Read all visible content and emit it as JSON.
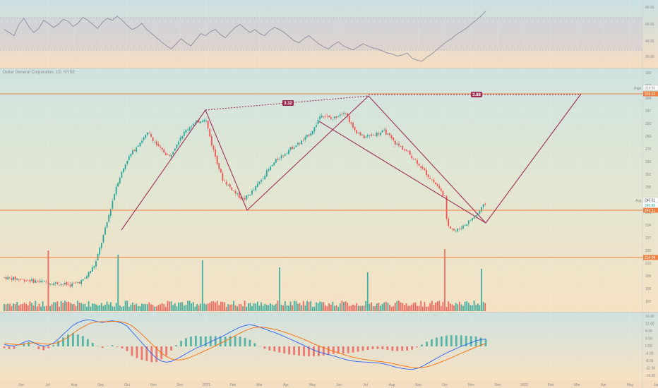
{
  "symbol_label": "Dollar General Corporation, 1D, NYSE",
  "chart_data": {
    "type": "candlestick",
    "price_axis": {
      "range": [
        191,
        323
      ],
      "ticks": [
        "320",
        "312",
        "304",
        "297",
        "290",
        "283",
        "276",
        "269",
        "262",
        "255",
        "248",
        "241",
        "234",
        "227",
        "220",
        "213",
        "206",
        "199",
        "192"
      ]
    },
    "rsi": {
      "range": [
        25,
        85
      ],
      "ticks": [
        "80.00",
        "60.00",
        "40.00",
        "30.00"
      ],
      "values": [
        61,
        58,
        55,
        66,
        72,
        64,
        58,
        62,
        70,
        67,
        63,
        66,
        71,
        69,
        64,
        67,
        73,
        70,
        66,
        62,
        68,
        72,
        70,
        74,
        70,
        65,
        61,
        63,
        67,
        61,
        57,
        53,
        49,
        45,
        42,
        47,
        52,
        48,
        45,
        51,
        57,
        55,
        59,
        61,
        56,
        53,
        58,
        63,
        66,
        62,
        58,
        61,
        57,
        55,
        60,
        63,
        61,
        58,
        54,
        50,
        48,
        52,
        55,
        51,
        47,
        44,
        42,
        46,
        49,
        45,
        43,
        41,
        44,
        47,
        45,
        43,
        42,
        40,
        38,
        37,
        35,
        36,
        38,
        33,
        31,
        30,
        34,
        37,
        41,
        45,
        49,
        52,
        56,
        59,
        62,
        66,
        70,
        74,
        79
      ]
    },
    "macd": {
      "ticks": [
        "16.00",
        "12.00",
        "8.00",
        "4.00",
        "0.00",
        "-4.00",
        "-8.00",
        "-12.00",
        "-16.00"
      ],
      "macd_line": [
        1.0,
        0.5,
        0.2,
        1.0,
        2.2,
        3.1,
        2.0,
        0.8,
        0.1,
        0.6,
        1.8,
        4,
        6.5,
        9,
        11.5,
        13,
        14,
        14.5,
        14.2,
        13.5,
        13,
        13.6,
        14,
        13.4,
        12.6,
        11,
        8,
        5,
        2,
        -1,
        -4,
        -6.5,
        -8,
        -8.6,
        -8.2,
        -7,
        -5.5,
        -4,
        -2.5,
        -1,
        0,
        1.2,
        2.5,
        3.8,
        5,
        6.3,
        7.8,
        9.2,
        10.5,
        11.4,
        11.8,
        11.4,
        10.5,
        9.5,
        8.5,
        7.6,
        6.5,
        5.4,
        4.2,
        3,
        1.8,
        0.5,
        -0.8,
        -2,
        -3,
        -3.8,
        -4.5,
        -5.2,
        -6,
        -6.8,
        -7.5,
        -8,
        -8.3,
        -8.5,
        -8.6,
        -8.8,
        -9,
        -9.4,
        -10,
        -10.8,
        -11.5,
        -12,
        -12.4,
        -12.6,
        -12,
        -11,
        -9.5,
        -8,
        -6.5,
        -5,
        -3.6,
        -2.4,
        -1.2,
        0,
        1.0,
        2.0,
        3.0,
        3.6,
        4.0
      ],
      "signal_line": [
        1.6,
        1.4,
        1.1,
        0.9,
        1.2,
        1.7,
        2.0,
        1.8,
        1.4,
        1.2,
        1.4,
        2.2,
        3.5,
        5,
        7,
        9,
        10.5,
        12,
        13,
        13.4,
        13.5,
        13.5,
        13.6,
        13.6,
        13.3,
        12.6,
        11.2,
        9,
        6.6,
        4,
        1.4,
        -1.2,
        -3.6,
        -5.5,
        -6.8,
        -7.4,
        -7.4,
        -6.8,
        -5.8,
        -4.6,
        -3.4,
        -2.2,
        -1,
        0.3,
        1.6,
        3,
        4.4,
        5.8,
        7.2,
        8.5,
        9.6,
        10.3,
        10.5,
        10.3,
        9.9,
        9.3,
        8.6,
        7.8,
        6.9,
        5.9,
        4.9,
        3.8,
        2.6,
        1.4,
        0.3,
        -0.7,
        -1.7,
        -2.6,
        -3.5,
        -4.4,
        -5.2,
        -5.9,
        -6.5,
        -7,
        -7.4,
        -7.8,
        -8.1,
        -8.4,
        -8.8,
        -9.3,
        -9.9,
        -10.5,
        -11,
        -11.5,
        -11.7,
        -11.6,
        -11.1,
        -10.4,
        -9.5,
        -8.4,
        -7.3,
        -6.2,
        -5,
        -3.8,
        -2.6,
        -1.5,
        -0.4,
        0.6,
        1.5
      ]
    },
    "horizontal_levels": [
      {
        "value": 319.5,
        "label": "319.50",
        "tag": "High"
      },
      {
        "value": 319.22,
        "label": "319.22"
      },
      {
        "value": 241.11,
        "label": "241.11"
      },
      {
        "value": 214.04,
        "label": "214.04"
      }
    ],
    "price_tags": [
      {
        "label": "Avg",
        "value": "245.61"
      },
      {
        "value": "245.80"
      }
    ],
    "pattern_badges": [
      {
        "label": "3.32",
        "color": "#9c2a52"
      },
      {
        "label": "3.88",
        "color": "#9c2a52"
      }
    ],
    "x_axis_labels": [
      "Jun",
      "Jul",
      "Aug",
      "Sep",
      "Oct",
      "Nov",
      "Dec",
      "2021",
      "Feb",
      "Mar",
      "Apr",
      "May",
      "Jun",
      "Jul",
      "Aug",
      "Sep",
      "Oct",
      "Nov",
      "Dec",
      "2022",
      "Feb",
      "Mar",
      "Apr",
      "May",
      "Jun"
    ],
    "colors": {
      "up": "#26a69a",
      "down": "#ef5350",
      "pattern": "#a0305a",
      "level": "#f08040",
      "rsi_line": "#8e8e9c",
      "macd": "#2962ff",
      "signal": "#ff6d00"
    }
  }
}
